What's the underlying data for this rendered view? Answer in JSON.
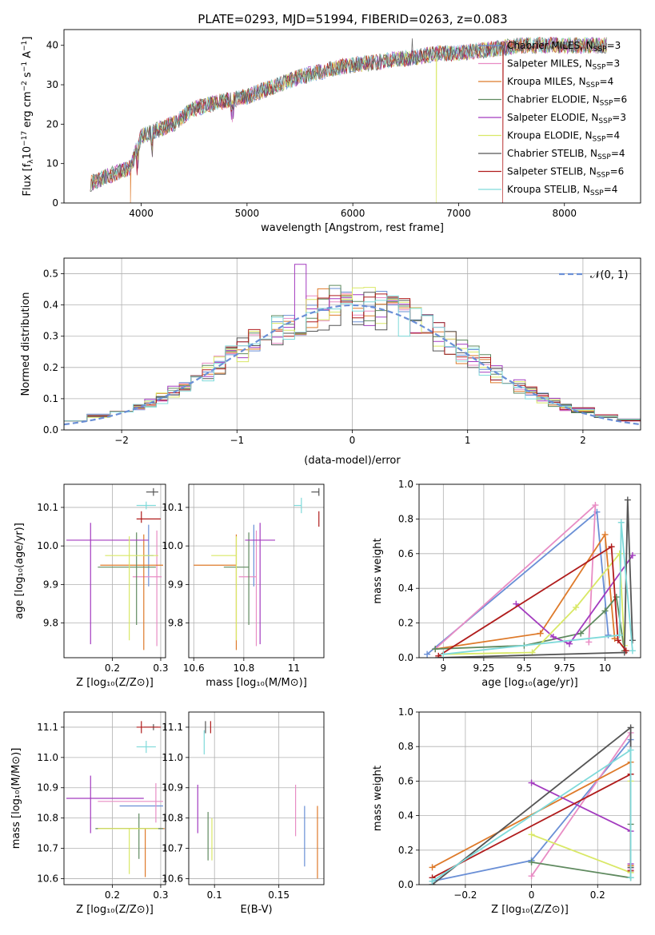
{
  "figure": {
    "title": "PLATE=0293, MJD=51994, FIBERID=0263, z=0.083"
  },
  "models": [
    {
      "name": "Chabrier MILES",
      "nssp": "3",
      "color": "#6a8fd6"
    },
    {
      "name": "Salpeter MILES",
      "nssp": "3",
      "color": "#e88cc4"
    },
    {
      "name": "Kroupa MILES",
      "nssp": "4",
      "color": "#de7a2a"
    },
    {
      "name": "Chabrier ELODIE",
      "nssp": "6",
      "color": "#5f8a5f"
    },
    {
      "name": "Salpeter ELODIE",
      "nssp": "3",
      "color": "#a33bbf"
    },
    {
      "name": "Kroupa ELODIE",
      "nssp": "4",
      "color": "#d9e866"
    },
    {
      "name": "Chabrier STELIB",
      "nssp": "4",
      "color": "#555555"
    },
    {
      "name": "Salpeter STELIB",
      "nssp": "6",
      "color": "#b01c1c"
    },
    {
      "name": "Kroupa STELIB",
      "nssp": "4",
      "color": "#7fdada"
    }
  ],
  "chart_data": [
    {
      "id": "spectrum",
      "type": "line",
      "xlabel": "wavelength [Angstrom, rest frame]",
      "ylabel": "Flux [f_λ 10^-17 erg cm^-2 s^-1 A^-1]",
      "xlim": [
        3270,
        8720
      ],
      "ylim": [
        0,
        44
      ],
      "xticks": [
        4000,
        5000,
        6000,
        7000,
        8000
      ],
      "yticks": [
        0,
        10,
        20,
        30,
        40
      ],
      "grid": false,
      "legend": "upper right",
      "continuum": [
        [
          3520,
          5
        ],
        [
          3700,
          7
        ],
        [
          3900,
          9
        ],
        [
          4000,
          17
        ],
        [
          4300,
          20
        ],
        [
          4500,
          24
        ],
        [
          4800,
          26
        ],
        [
          5000,
          27
        ],
        [
          5200,
          29
        ],
        [
          5500,
          32
        ],
        [
          5800,
          34
        ],
        [
          6000,
          35
        ],
        [
          6300,
          36
        ],
        [
          6600,
          37
        ],
        [
          6800,
          38
        ],
        [
          7000,
          38
        ],
        [
          7300,
          39
        ],
        [
          7600,
          40
        ],
        [
          8000,
          40
        ],
        [
          8400,
          40
        ]
      ],
      "dropouts": [
        {
          "model": "Kroupa MILES",
          "x": 3900
        },
        {
          "model": "Kroupa ELODIE",
          "x": 6790
        },
        {
          "model": "Salpeter STELIB",
          "x": 7420
        },
        {
          "model": "Kroupa MILES",
          "x": 7420
        }
      ]
    },
    {
      "id": "residuals",
      "type": "histogram",
      "xlabel": "(data-model)/error",
      "ylabel": "Normed distribution",
      "xlim": [
        -2.5,
        2.5
      ],
      "ylim": [
        0,
        0.55
      ],
      "xticks": [
        -2,
        -1,
        0,
        1,
        2
      ],
      "yticks": [
        0.0,
        0.1,
        0.2,
        0.3,
        0.4,
        0.5
      ],
      "grid": true,
      "legend": "upper right",
      "reference": {
        "name": "𝒩(0, 1)",
        "mean": 0,
        "sigma": 1,
        "color": "#6a8fd6"
      },
      "bins": [
        -2.5,
        -2.3,
        -2.1,
        -1.9,
        -1.8,
        -1.7,
        -1.6,
        -1.5,
        -1.4,
        -1.3,
        -1.2,
        -1.1,
        -1.0,
        -0.9,
        -0.8,
        -0.7,
        -0.6,
        -0.5,
        -0.4,
        -0.3,
        -0.2,
        -0.1,
        0.0,
        0.1,
        0.2,
        0.3,
        0.4,
        0.5,
        0.6,
        0.7,
        0.8,
        0.9,
        1.0,
        1.1,
        1.2,
        1.3,
        1.4,
        1.5,
        1.6,
        1.7,
        1.8,
        1.9,
        2.1,
        2.3,
        2.5
      ]
    },
    {
      "id": "Z-age",
      "type": "errorbar",
      "xlabel": "Z [log₁₀(Z/Z⊙)]",
      "ylabel": "age  [log₁₀(age/yr)]",
      "xlim": [
        0.1,
        0.31
      ],
      "ylim": [
        9.71,
        10.16
      ],
      "xticks": [
        0.2,
        0.3
      ],
      "yticks": [
        9.8,
        9.9,
        10.0,
        10.1
      ],
      "grid": true,
      "points": [
        {
          "model": "Chabrier MILES",
          "x": 0.275,
          "xerr": [
            0.01,
            0.01
          ],
          "y": 9.975,
          "yerr": [
            0.08,
            0.08
          ]
        },
        {
          "model": "Salpeter MILES",
          "x": 0.292,
          "xerr": [
            0.05,
            0.01
          ],
          "y": 9.92,
          "yerr": [
            0.18,
            0.12
          ]
        },
        {
          "model": "Kroupa MILES",
          "x": 0.265,
          "xerr": [
            0.09,
            0.04
          ],
          "y": 9.95,
          "yerr": [
            0.22,
            0.08
          ]
        },
        {
          "model": "Chabrier ELODIE",
          "x": 0.25,
          "xerr": [
            0.08,
            0.04
          ],
          "y": 9.945,
          "yerr": [
            0.15,
            0.09
          ]
        },
        {
          "model": "Salpeter ELODIE",
          "x": 0.155,
          "xerr": [
            0.05,
            0.12
          ],
          "y": 10.015,
          "yerr": [
            0.27,
            0.045
          ]
        },
        {
          "model": "Kroupa ELODIE",
          "x": 0.235,
          "xerr": [
            0.05,
            0.06
          ],
          "y": 9.975,
          "yerr": [
            0.22,
            0.05
          ]
        },
        {
          "model": "Chabrier STELIB",
          "x": 0.285,
          "xerr": [
            0.015,
            0.01
          ],
          "y": 10.14,
          "yerr": [
            0.01,
            0.01
          ]
        },
        {
          "model": "Salpeter STELIB",
          "x": 0.26,
          "xerr": [
            0.01,
            0.04
          ],
          "y": 10.07,
          "yerr": [
            0.01,
            0.02
          ]
        },
        {
          "model": "Kroupa STELIB",
          "x": 0.27,
          "xerr": [
            0.02,
            0.02
          ],
          "y": 10.105,
          "yerr": [
            0.01,
            0.01
          ]
        }
      ]
    },
    {
      "id": "mass-age",
      "type": "errorbar",
      "xlabel": "mass [log₁₀(M/M⊙)]",
      "ylabel": "",
      "xlim": [
        10.58,
        11.12
      ],
      "ylim": [
        9.71,
        10.16
      ],
      "xticks": [
        10.6,
        10.8,
        11.0
      ],
      "yticks": [
        9.8,
        9.9,
        10.0,
        10.1
      ],
      "grid": true,
      "points": [
        {
          "model": "Chabrier MILES",
          "x": 10.84,
          "xerr": [
            0.0,
            0.0
          ],
          "y": 9.975,
          "yerr": [
            0.08,
            0.08
          ]
        },
        {
          "model": "Salpeter MILES",
          "x": 10.85,
          "xerr": [
            0.07,
            0.0
          ],
          "y": 9.92,
          "yerr": [
            0.18,
            0.12
          ]
        },
        {
          "model": "Kroupa MILES",
          "x": 10.77,
          "xerr": [
            0.17,
            0.0
          ],
          "y": 9.95,
          "yerr": [
            0.22,
            0.08
          ]
        },
        {
          "model": "Chabrier ELODIE",
          "x": 10.82,
          "xerr": [
            0.1,
            0.0
          ],
          "y": 9.945,
          "yerr": [
            0.15,
            0.09
          ]
        },
        {
          "model": "Salpeter ELODIE",
          "x": 10.865,
          "xerr": [
            0.06,
            0.06
          ],
          "y": 10.015,
          "yerr": [
            0.27,
            0.045
          ]
        },
        {
          "model": "Kroupa ELODIE",
          "x": 10.77,
          "xerr": [
            0.1,
            0.0
          ],
          "y": 9.975,
          "yerr": [
            0.22,
            0.05
          ]
        },
        {
          "model": "Chabrier STELIB",
          "x": 11.1,
          "xerr": [
            0.03,
            0.0
          ],
          "y": 10.14,
          "yerr": [
            0.01,
            0.01
          ]
        },
        {
          "model": "Salpeter STELIB",
          "x": 11.1,
          "xerr": [
            0.0,
            0.0
          ],
          "y": 10.07,
          "yerr": [
            0.02,
            0.02
          ]
        },
        {
          "model": "Kroupa STELIB",
          "x": 11.03,
          "xerr": [
            0.03,
            0.0
          ],
          "y": 10.105,
          "yerr": [
            0.02,
            0.02
          ]
        }
      ]
    },
    {
      "id": "age-weight",
      "type": "line",
      "xlabel": "age  [log₁₀(age/yr)]",
      "ylabel": "mass weight",
      "xlim": [
        8.85,
        10.22
      ],
      "ylim": [
        0.0,
        1.0
      ],
      "xticks": [
        9.0,
        9.25,
        9.5,
        9.75,
        10.0
      ],
      "yticks": [
        0.0,
        0.2,
        0.4,
        0.6,
        0.8,
        1.0
      ],
      "grid": true,
      "series": [
        {
          "model": "Chabrier MILES",
          "x": [
            8.9,
            9.95,
            10.02
          ],
          "y": [
            0.02,
            0.84,
            0.13
          ]
        },
        {
          "model": "Salpeter MILES",
          "x": [
            8.95,
            9.94,
            9.9
          ],
          "y": [
            0.05,
            0.88,
            0.09
          ]
        },
        {
          "model": "Kroupa MILES",
          "x": [
            8.95,
            9.6,
            10.0,
            10.06
          ],
          "y": [
            0.05,
            0.14,
            0.71,
            0.11
          ]
        },
        {
          "model": "Chabrier ELODIE",
          "x": [
            8.95,
            9.5,
            9.85,
            10.0,
            10.07,
            10.12
          ],
          "y": [
            0.05,
            0.07,
            0.14,
            0.27,
            0.35,
            0.04
          ]
        },
        {
          "model": "Salpeter ELODIE",
          "x": [
            9.45,
            9.68,
            9.78,
            10.17
          ],
          "y": [
            0.31,
            0.12,
            0.08,
            0.59
          ]
        },
        {
          "model": "Kroupa ELODIE",
          "x": [
            9.0,
            9.55,
            9.82,
            10.09,
            10.12
          ],
          "y": [
            0.02,
            0.03,
            0.29,
            0.6,
            0.07
          ]
        },
        {
          "model": "Chabrier STELIB",
          "x": [
            8.97,
            10.12,
            10.14,
            10.17
          ],
          "y": [
            0.0,
            0.03,
            0.91,
            0.1
          ]
        },
        {
          "model": "Salpeter STELIB",
          "x": [
            8.97,
            10.04,
            10.08,
            10.13
          ],
          "y": [
            0.01,
            0.64,
            0.1,
            0.04
          ]
        },
        {
          "model": "Kroupa STELIB",
          "x": [
            9.0,
            10.09,
            10.1,
            10.17
          ],
          "y": [
            0.02,
            0.13,
            0.78,
            0.04
          ]
        }
      ]
    },
    {
      "id": "Z-mass",
      "type": "errorbar",
      "xlabel": "Z [log₁₀(Z/Z⊙)]",
      "ylabel": "mass [log₁₀(M/M⊙)]",
      "xlim": [
        0.1,
        0.31
      ],
      "ylim": [
        10.58,
        11.15
      ],
      "xticks": [
        0.2,
        0.3
      ],
      "yticks": [
        10.6,
        10.7,
        10.8,
        10.9,
        11.0,
        11.1
      ],
      "grid": true,
      "points": [
        {
          "model": "Chabrier MILES",
          "x": 0.265,
          "xerr": [
            0.05,
            0.04
          ],
          "y": 10.84,
          "yerr": [
            0.0,
            0.0
          ]
        },
        {
          "model": "Salpeter MILES",
          "x": 0.29,
          "xerr": [
            0.12,
            0.015
          ],
          "y": 10.855,
          "yerr": [
            0.07,
            0.06
          ]
        },
        {
          "model": "Kroupa MILES",
          "x": 0.268,
          "xerr": [
            0.1,
            0.04
          ],
          "y": 10.765,
          "yerr": [
            0.16,
            0.0
          ]
        },
        {
          "model": "Chabrier ELODIE",
          "x": 0.255,
          "xerr": [
            0.09,
            0.05
          ],
          "y": 10.765,
          "yerr": [
            0.1,
            0.05
          ]
        },
        {
          "model": "Salpeter ELODIE",
          "x": 0.155,
          "xerr": [
            0.05,
            0.11
          ],
          "y": 10.865,
          "yerr": [
            0.115,
            0.075
          ]
        },
        {
          "model": "Kroupa ELODIE",
          "x": 0.235,
          "xerr": [
            0.065,
            0.06
          ],
          "y": 10.765,
          "yerr": [
            0.15,
            0.0
          ]
        },
        {
          "model": "Chabrier STELIB",
          "x": 0.285,
          "xerr": [
            0.02,
            0.01
          ],
          "y": 11.1,
          "yerr": [
            0.01,
            0.01
          ]
        },
        {
          "model": "Salpeter STELIB",
          "x": 0.26,
          "xerr": [
            0.01,
            0.04
          ],
          "y": 11.1,
          "yerr": [
            0.02,
            0.02
          ]
        },
        {
          "model": "Kroupa STELIB",
          "x": 0.27,
          "xerr": [
            0.02,
            0.02
          ],
          "y": 11.035,
          "yerr": [
            0.02,
            0.02
          ]
        }
      ]
    },
    {
      "id": "ebv-mass",
      "type": "errorbar",
      "xlabel": "E(B-V)",
      "ylabel": "",
      "xlim": [
        0.08,
        0.185
      ],
      "ylim": [
        10.58,
        11.15
      ],
      "xticks": [
        0.1,
        0.15
      ],
      "yticks": [
        10.6,
        10.7,
        10.8,
        10.9,
        11.0,
        11.1
      ],
      "grid": true,
      "points": [
        {
          "model": "Chabrier MILES",
          "x": 0.17,
          "xerr": [
            0,
            0
          ],
          "y": 10.7,
          "yerr": [
            0.06,
            0.14
          ]
        },
        {
          "model": "Salpeter MILES",
          "x": 0.163,
          "xerr": [
            0,
            0
          ],
          "y": 10.8,
          "yerr": [
            0.06,
            0.11
          ]
        },
        {
          "model": "Kroupa MILES",
          "x": 0.18,
          "xerr": [
            0,
            0
          ],
          "y": 10.72,
          "yerr": [
            0.12,
            0.12
          ]
        },
        {
          "model": "Chabrier ELODIE",
          "x": 0.095,
          "xerr": [
            0,
            0
          ],
          "y": 10.75,
          "yerr": [
            0.09,
            0.07
          ]
        },
        {
          "model": "Salpeter ELODIE",
          "x": 0.087,
          "xerr": [
            0,
            0
          ],
          "y": 10.8,
          "yerr": [
            0.05,
            0.11
          ]
        },
        {
          "model": "Kroupa ELODIE",
          "x": 0.098,
          "xerr": [
            0,
            0
          ],
          "y": 10.73,
          "yerr": [
            0.07,
            0.07
          ]
        },
        {
          "model": "Chabrier STELIB",
          "x": 0.093,
          "xerr": [
            0,
            0
          ],
          "y": 11.1,
          "yerr": [
            0.02,
            0.02
          ]
        },
        {
          "model": "Salpeter STELIB",
          "x": 0.097,
          "xerr": [
            0,
            0
          ],
          "y": 11.1,
          "yerr": [
            0.02,
            0.02
          ]
        },
        {
          "model": "Kroupa STELIB",
          "x": 0.092,
          "xerr": [
            0,
            0
          ],
          "y": 11.05,
          "yerr": [
            0.04,
            0.04
          ]
        }
      ]
    },
    {
      "id": "Z-weight",
      "type": "line",
      "xlabel": "Z [log₁₀(Z/Z⊙)]",
      "ylabel": "mass weight",
      "xlim": [
        -0.34,
        0.33
      ],
      "ylim": [
        0.0,
        1.0
      ],
      "xticks": [
        -0.2,
        0.0,
        0.2
      ],
      "yticks": [
        0.0,
        0.2,
        0.4,
        0.6,
        0.8,
        1.0
      ],
      "grid": true,
      "series": [
        {
          "model": "Chabrier MILES",
          "x": [
            -0.3,
            0.0,
            0.0,
            0.3
          ],
          "y": [
            0.02,
            0.14,
            0.14,
            0.84
          ]
        },
        {
          "model": "Salpeter MILES",
          "x": [
            0.0,
            0.3,
            0.3
          ],
          "y": [
            0.05,
            0.88,
            0.09
          ]
        },
        {
          "model": "Kroupa MILES",
          "x": [
            -0.3,
            0.3,
            0.3
          ],
          "y": [
            0.1,
            0.71,
            0.11
          ]
        },
        {
          "model": "Chabrier ELODIE",
          "x": [
            0.0,
            0.3,
            0.3
          ],
          "y": [
            0.13,
            0.04,
            0.35
          ]
        },
        {
          "model": "Salpeter ELODIE",
          "x": [
            0.0,
            0.3,
            0.3
          ],
          "y": [
            0.59,
            0.31,
            0.12
          ]
        },
        {
          "model": "Kroupa ELODIE",
          "x": [
            0.0,
            0.3,
            0.3
          ],
          "y": [
            0.29,
            0.07,
            0.6
          ]
        },
        {
          "model": "Chabrier STELIB",
          "x": [
            -0.3,
            0.3,
            0.3
          ],
          "y": [
            0.0,
            0.91,
            0.1
          ]
        },
        {
          "model": "Salpeter STELIB",
          "x": [
            -0.3,
            0.3,
            0.3
          ],
          "y": [
            0.04,
            0.64,
            0.08
          ]
        },
        {
          "model": "Kroupa STELIB",
          "x": [
            -0.3,
            0.3,
            0.3
          ],
          "y": [
            0.02,
            0.78,
            0.04
          ]
        }
      ]
    }
  ]
}
